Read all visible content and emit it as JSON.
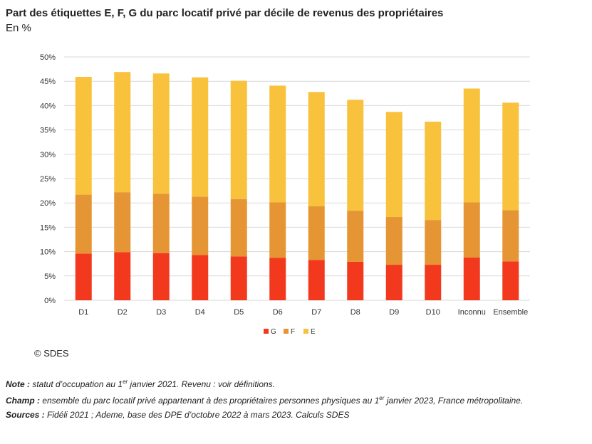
{
  "header": {
    "title": "Part des étiquettes E, F, G du parc locatif privé par décile de revenus des propriétaires",
    "subtitle": "En %"
  },
  "colors": {
    "G": "#f2391e",
    "F": "#e69534",
    "E": "#f8c23c",
    "grid": "#d9d9d9"
  },
  "chart_data": {
    "type": "bar",
    "stacked": true,
    "title": "Part des étiquettes E, F, G du parc locatif privé par décile de revenus des propriétaires",
    "ylabel": "En %",
    "xlabel": "",
    "ylim": [
      0,
      50
    ],
    "yticks": [
      0,
      5,
      10,
      15,
      20,
      25,
      30,
      35,
      40,
      45,
      50
    ],
    "ytick_labels": [
      "0%",
      "5%",
      "10%",
      "15%",
      "20%",
      "25%",
      "30%",
      "35%",
      "40%",
      "45%",
      "50%"
    ],
    "grid": true,
    "legend_position": "bottom",
    "categories": [
      "D1",
      "D2",
      "D3",
      "D4",
      "D5",
      "D6",
      "D7",
      "D8",
      "D9",
      "D10",
      "Inconnu",
      "Ensemble"
    ],
    "series": [
      {
        "name": "G",
        "values": [
          9.6,
          9.9,
          9.7,
          9.3,
          9.0,
          8.7,
          8.3,
          7.9,
          7.3,
          7.3,
          8.8,
          8.0
        ]
      },
      {
        "name": "F",
        "values": [
          12.1,
          12.3,
          12.2,
          12.0,
          11.8,
          11.4,
          11.0,
          10.5,
          9.8,
          9.2,
          11.3,
          10.5
        ]
      },
      {
        "name": "E",
        "values": [
          24.2,
          24.7,
          24.7,
          24.5,
          24.3,
          24.0,
          23.5,
          22.8,
          21.6,
          20.2,
          23.4,
          22.1
        ]
      }
    ]
  },
  "footer": {
    "copyright": "© SDES",
    "note_label": "Note :",
    "note_text_1": " statut d’occupation au 1",
    "note_sup": "er",
    "note_text_2": " janvier 2021. Revenu : voir définitions.",
    "champ_label": "Champ :",
    "champ_text_1": " ensemble du parc locatif privé appartenant à des propriétaires personnes physiques au 1",
    "champ_sup": "er",
    "champ_text_2": " janvier 2023, France métropolitaine.",
    "sources_label": "Sources :",
    "sources_text": " Fidéli 2021 ; Ademe, base des DPE d’octobre 2022 à mars 2023. Calculs SDES"
  }
}
